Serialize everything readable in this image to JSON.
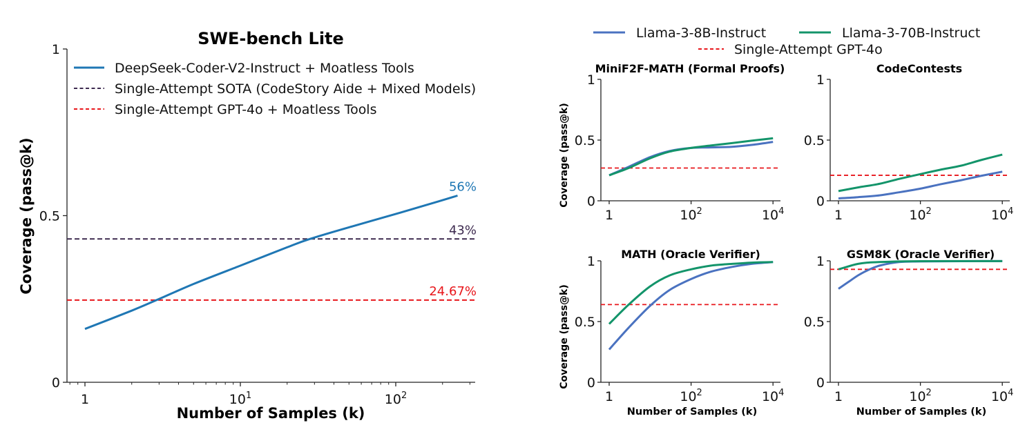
{
  "chart_data": [
    {
      "id": "swe",
      "type": "line",
      "title": "SWE-bench Lite",
      "xlabel": "Number of Samples (k)",
      "ylabel": "Coverage (pass@k)",
      "xscale": "log",
      "xlim": [
        0.76,
        330
      ],
      "ylim": [
        0,
        1
      ],
      "yticks": [
        {
          "v": 0,
          "label": "0"
        },
        {
          "v": 0.5,
          "label": "0.5"
        },
        {
          "v": 1,
          "label": "1"
        }
      ],
      "xticks": [
        {
          "v": 1,
          "base": "1",
          "exp": ""
        },
        {
          "v": 10,
          "base": "10",
          "exp": "1"
        },
        {
          "v": 100,
          "base": "10",
          "exp": "2"
        }
      ],
      "legend_position": "top-left",
      "series": [
        {
          "name": "DeepSeek-Coder-V2-Instruct + Moatless Tools",
          "style": "solid",
          "color": "#1f77b4",
          "x": [
            1,
            2,
            3,
            5,
            10,
            20,
            28,
            50,
            100,
            180,
            250
          ],
          "y": [
            0.16,
            0.215,
            0.25,
            0.295,
            0.35,
            0.405,
            0.43,
            0.465,
            0.505,
            0.54,
            0.56
          ],
          "end_label": "56%"
        },
        {
          "name": "Single-Attempt SOTA (CodeStory Aide + Mixed Models)",
          "style": "dashed",
          "color": "#3d2a4f",
          "hline": 0.43,
          "end_label": "43%"
        },
        {
          "name": "Single-Attempt GPT-4o + Moatless Tools",
          "style": "dashed",
          "color": "#e8161b",
          "hline": 0.2467,
          "end_label": "24.67%"
        }
      ]
    },
    {
      "id": "minif2f",
      "type": "line",
      "title": "MiniF2F-MATH (Formal Proofs)",
      "xlabel": "",
      "ylabel": "Coverage (pass@k)",
      "xscale": "log",
      "ylim": [
        0,
        1
      ],
      "series": [
        {
          "name": "Llama-3-8B-Instruct",
          "x": [
            1,
            3,
            10,
            30,
            100,
            300,
            1000,
            3000,
            10000
          ],
          "y": [
            0.21,
            0.28,
            0.36,
            0.41,
            0.435,
            0.44,
            0.445,
            0.46,
            0.485
          ]
        },
        {
          "name": "Llama-3-70B-Instruct",
          "x": [
            1,
            3,
            10,
            30,
            100,
            300,
            1000,
            3000,
            10000
          ],
          "y": [
            0.21,
            0.27,
            0.35,
            0.405,
            0.435,
            0.455,
            0.475,
            0.495,
            0.515
          ]
        },
        {
          "name": "Single-Attempt GPT-4o",
          "hline": 0.27
        }
      ]
    },
    {
      "id": "codecontests",
      "type": "line",
      "title": "CodeContests",
      "xlabel": "",
      "ylabel": "",
      "xscale": "log",
      "ylim": [
        0,
        1
      ],
      "series": [
        {
          "name": "Llama-3-8B-Instruct",
          "x": [
            1,
            3,
            10,
            30,
            100,
            300,
            1000,
            3000,
            10000
          ],
          "y": [
            0.02,
            0.03,
            0.045,
            0.07,
            0.1,
            0.135,
            0.17,
            0.205,
            0.24
          ]
        },
        {
          "name": "Llama-3-70B-Instruct",
          "x": [
            1,
            3,
            10,
            30,
            100,
            300,
            1000,
            3000,
            10000
          ],
          "y": [
            0.08,
            0.11,
            0.14,
            0.18,
            0.22,
            0.255,
            0.29,
            0.335,
            0.38
          ]
        },
        {
          "name": "Single-Attempt GPT-4o",
          "hline": 0.21
        }
      ]
    },
    {
      "id": "math",
      "type": "line",
      "title": "MATH (Oracle Verifier)",
      "xlabel": "Number of Samples (k)",
      "ylabel": "Coverage (pass@k)",
      "xscale": "log",
      "ylim": [
        0,
        1
      ],
      "series": [
        {
          "name": "Llama-3-8B-Instruct",
          "x": [
            1,
            3,
            10,
            30,
            100,
            300,
            1000,
            3000,
            10000
          ],
          "y": [
            0.27,
            0.45,
            0.63,
            0.76,
            0.85,
            0.91,
            0.95,
            0.975,
            0.99
          ]
        },
        {
          "name": "Llama-3-70B-Instruct",
          "x": [
            1,
            3,
            10,
            30,
            100,
            300,
            1000,
            3000,
            10000
          ],
          "y": [
            0.48,
            0.64,
            0.79,
            0.88,
            0.93,
            0.96,
            0.975,
            0.985,
            0.99
          ]
        },
        {
          "name": "Single-Attempt GPT-4o",
          "hline": 0.64
        }
      ]
    },
    {
      "id": "gsm8k",
      "type": "line",
      "title": "GSM8K (Oracle Verifier)",
      "xlabel": "Number of Samples (k)",
      "ylabel": "",
      "xscale": "log",
      "ylim": [
        0,
        1
      ],
      "series": [
        {
          "name": "Llama-3-8B-Instruct",
          "x": [
            1,
            2,
            3,
            5,
            10,
            30,
            100,
            1000,
            10000
          ],
          "y": [
            0.77,
            0.84,
            0.88,
            0.92,
            0.96,
            0.99,
            0.995,
            0.997,
            0.998
          ]
        },
        {
          "name": "Llama-3-70B-Instruct",
          "x": [
            1,
            2,
            3,
            5,
            10,
            30,
            100,
            1000,
            10000
          ],
          "y": [
            0.93,
            0.96,
            0.975,
            0.985,
            0.99,
            0.995,
            0.997,
            0.998,
            0.998
          ]
        },
        {
          "name": "Single-Attempt GPT-4o",
          "hline": 0.93
        }
      ]
    }
  ],
  "shared_legend": {
    "position": "top",
    "entries": [
      {
        "label": "Llama-3-8B-Instruct",
        "style": "solid",
        "color": "#4a72c0"
      },
      {
        "label": "Llama-3-70B-Instruct",
        "style": "solid",
        "color": "#13946a"
      },
      {
        "label": "Single-Attempt GPT-4o",
        "style": "dashed",
        "color": "#e8161b"
      }
    ]
  },
  "small_axes": {
    "yticks": [
      {
        "v": 0,
        "label": "0"
      },
      {
        "v": 0.5,
        "label": "0.5"
      },
      {
        "v": 1,
        "label": "1"
      }
    ],
    "xticks": [
      {
        "v": 1,
        "base": "1",
        "exp": ""
      },
      {
        "v": 100,
        "base": "10",
        "exp": "2"
      },
      {
        "v": 10000,
        "base": "10",
        "exp": "4"
      }
    ],
    "xlim": [
      0.8,
      15000
    ]
  }
}
